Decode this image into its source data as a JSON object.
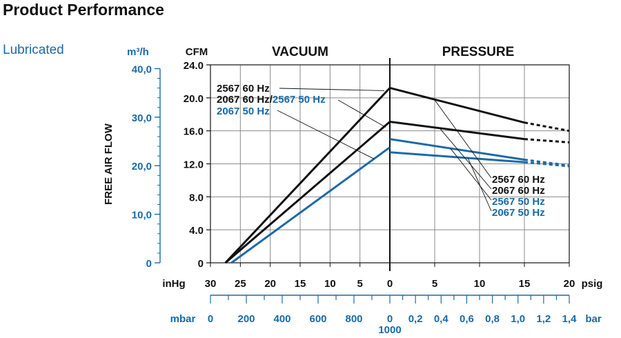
{
  "page": {
    "title": "Product Performance",
    "subtitle": "Lubricated"
  },
  "colors": {
    "black": "#111111",
    "blue": "#1a6aa8",
    "grid": "#888888"
  },
  "chart_data": {
    "type": "line",
    "sections": {
      "vacuum": "VACUUM",
      "pressure": "PRESSURE"
    },
    "ylabel": "FREE AIR FLOW",
    "y_left_unit": "m³/h",
    "y_right_unit": "CFM",
    "ylim": [
      0,
      24
    ],
    "cfm_ticks": [
      "0",
      "4.0",
      "8.0",
      "12.0",
      "16.0",
      "20.0",
      "24.0"
    ],
    "m3h_ticks": [
      {
        "label": "0",
        "cfm": 0
      },
      {
        "label": "10,0",
        "cfm": 5.886
      },
      {
        "label": "20,0",
        "cfm": 11.772
      },
      {
        "label": "30,0",
        "cfm": 17.657
      },
      {
        "label": "40,0",
        "cfm": 23.543
      }
    ],
    "inhg_unit": "inHg",
    "inhg_ticks": [
      "30",
      "25",
      "20",
      "15",
      "10",
      "5",
      "0"
    ],
    "psig_unit": "psig",
    "psig_ticks": [
      "0",
      "5",
      "10",
      "15",
      "20"
    ],
    "mbar_unit": "mbar",
    "mbar_ticks": [
      "0",
      "200",
      "400",
      "600",
      "800"
    ],
    "mbar_zero": "0",
    "mbar_end": "1000",
    "bar_unit": "bar",
    "bar_ticks": [
      "0,2",
      "0,4",
      "0,6",
      "0,8",
      "1,0",
      "1,2",
      "1,4"
    ],
    "series": [
      {
        "name": "2567 60 Hz",
        "color": "black",
        "vacuum": [
          {
            "inhg": 27.5,
            "cfm": 0
          },
          {
            "inhg": 0,
            "cfm": 21.2
          }
        ],
        "pressure": [
          {
            "psig": 0,
            "cfm": 21.2
          },
          {
            "psig": 15,
            "cfm": 17.0
          }
        ],
        "extrapolated": [
          {
            "psig": 15,
            "cfm": 17.0
          },
          {
            "psig": 20,
            "cfm": 16.0
          }
        ]
      },
      {
        "name": "2067 60 Hz",
        "color": "black",
        "vacuum": [
          {
            "inhg": 27.5,
            "cfm": 0
          },
          {
            "inhg": 0,
            "cfm": 17.1
          }
        ],
        "pressure": [
          {
            "psig": 0,
            "cfm": 17.1
          },
          {
            "psig": 15,
            "cfm": 15.0
          }
        ],
        "extrapolated": [
          {
            "psig": 15,
            "cfm": 15.0
          },
          {
            "psig": 20,
            "cfm": 14.6
          }
        ]
      },
      {
        "name": "2567 50 Hz",
        "color": "blue",
        "vacuum": [],
        "pressure": [
          {
            "psig": 0,
            "cfm": 15.0
          },
          {
            "psig": 15,
            "cfm": 12.5
          }
        ],
        "extrapolated": [
          {
            "psig": 15,
            "cfm": 12.5
          },
          {
            "psig": 20,
            "cfm": 11.8
          }
        ]
      },
      {
        "name": "2067 50 Hz",
        "color": "blue",
        "vacuum": [
          {
            "inhg": 26.5,
            "cfm": 0
          },
          {
            "inhg": 0,
            "cfm": 14.0
          }
        ],
        "pressure": [
          {
            "psig": 0,
            "cfm": 13.4
          },
          {
            "psig": 15,
            "cfm": 12.2
          }
        ],
        "extrapolated": [
          {
            "psig": 15,
            "cfm": 12.2
          },
          {
            "psig": 20,
            "cfm": 11.7
          }
        ]
      }
    ],
    "legend_left": [
      {
        "text": "2567 60 Hz",
        "color": "black"
      },
      {
        "text": "2067 60 Hz/",
        "color": "black"
      },
      {
        "text": "2567 50 Hz",
        "color": "blue"
      },
      {
        "text": "2067 50 Hz",
        "color": "blue"
      }
    ],
    "legend_right": [
      {
        "text": "2567 60 Hz",
        "color": "black"
      },
      {
        "text": "2067 60 Hz",
        "color": "black"
      },
      {
        "text": "2567 50 Hz",
        "color": "blue"
      },
      {
        "text": "2067 50 Hz",
        "color": "blue"
      }
    ]
  }
}
